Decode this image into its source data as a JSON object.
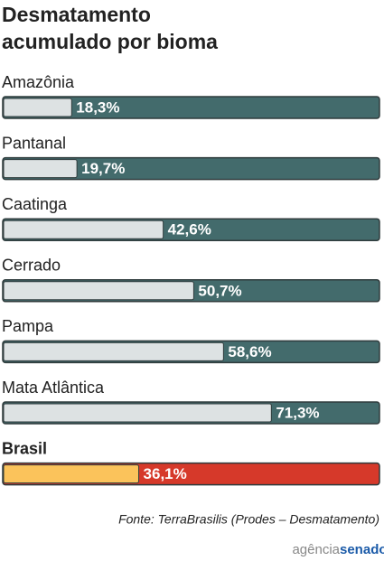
{
  "chart_data": {
    "type": "bar",
    "orientation": "horizontal",
    "title": [
      "Desmatamento",
      "acumulado por bioma"
    ],
    "categories": [
      "Amazônia",
      "Pantanal",
      "Caatinga",
      "Cerrado",
      "Pampa",
      "Mata Atlântica",
      "Brasil"
    ],
    "values": [
      18.3,
      19.7,
      42.6,
      50.7,
      58.6,
      71.3,
      36.1
    ],
    "value_labels": [
      "18,3%",
      "19,7%",
      "42,6%",
      "50,7%",
      "58,6%",
      "71,3%",
      "36,1%"
    ],
    "colors": [
      "#dde2e3",
      "#dde2e3",
      "#dde2e3",
      "#dde2e3",
      "#dde2e3",
      "#dde2e3",
      "#fbc35b"
    ],
    "track_colors": [
      "#436b6c",
      "#436b6c",
      "#436b6c",
      "#436b6c",
      "#436b6c",
      "#436b6c",
      "#d6392a"
    ],
    "label_weights": [
      "normal",
      "normal",
      "normal",
      "normal",
      "normal",
      "normal",
      "bold"
    ],
    "xlim": [
      0,
      100
    ],
    "source": "Fonte: TerraBrasilis (Prodes – Desmatamento)",
    "logo": [
      "agência",
      "senado"
    ]
  }
}
